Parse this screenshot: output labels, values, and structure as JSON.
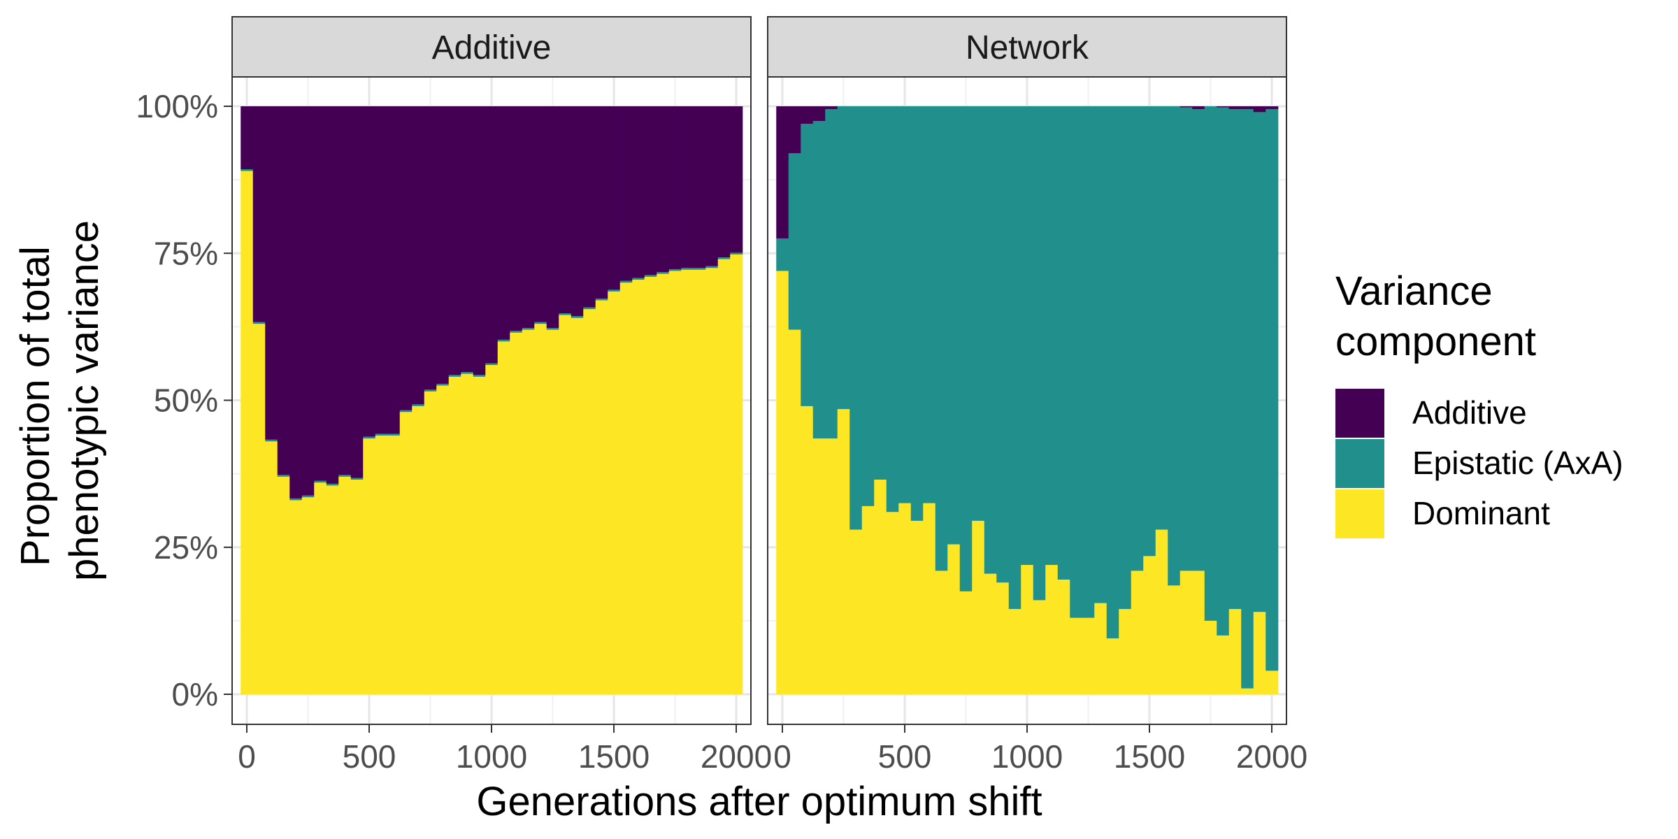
{
  "chart_data": {
    "type": "bar",
    "stacked": true,
    "normalized": true,
    "xlabel": "Generations after optimum shift",
    "ylabel_lines": [
      "Proportion of total",
      "phenotypic variance"
    ],
    "xlim": [
      -60,
      2060
    ],
    "ylim": [
      0,
      1
    ],
    "x_ticks": [
      0,
      500,
      1000,
      1500,
      2000
    ],
    "x_tick_labels": [
      "0",
      "500",
      "1000",
      "1500",
      "2000"
    ],
    "y_ticks": [
      0,
      0.25,
      0.5,
      0.75,
      1
    ],
    "y_tick_labels": [
      "0%",
      "25%",
      "50%",
      "75%",
      "100%"
    ],
    "bin_width": 50,
    "grid": true,
    "legend": {
      "title_lines": [
        "Variance",
        "component"
      ],
      "position": "right",
      "entries": [
        {
          "name": "Additive",
          "color": "#440154"
        },
        {
          "name": "Epistatic (AxA)",
          "color": "#21908C"
        },
        {
          "name": "Dominant",
          "color": "#FDE725"
        }
      ]
    },
    "panels": [
      {
        "name": "Additive",
        "x": [
          0,
          50,
          100,
          150,
          200,
          250,
          300,
          350,
          400,
          450,
          500,
          550,
          600,
          650,
          700,
          750,
          800,
          850,
          900,
          950,
          1000,
          1050,
          1100,
          1150,
          1200,
          1250,
          1300,
          1350,
          1400,
          1450,
          1500,
          1550,
          1600,
          1650,
          1700,
          1750,
          1800,
          1850,
          1900,
          1950,
          2000
        ],
        "dominant": [
          0.89,
          0.63,
          0.43,
          0.37,
          0.33,
          0.335,
          0.36,
          0.355,
          0.37,
          0.365,
          0.435,
          0.44,
          0.44,
          0.48,
          0.49,
          0.515,
          0.525,
          0.54,
          0.545,
          0.54,
          0.56,
          0.6,
          0.615,
          0.62,
          0.63,
          0.62,
          0.645,
          0.64,
          0.655,
          0.67,
          0.685,
          0.7,
          0.705,
          0.71,
          0.715,
          0.72,
          0.722,
          0.722,
          0.725,
          0.74,
          0.748
        ],
        "epistatic": [
          0.003,
          0.003,
          0.003,
          0.003,
          0.003,
          0.003,
          0.003,
          0.003,
          0.003,
          0.003,
          0.003,
          0.003,
          0.003,
          0.003,
          0.003,
          0.003,
          0.003,
          0.003,
          0.003,
          0.003,
          0.003,
          0.003,
          0.003,
          0.003,
          0.003,
          0.003,
          0.003,
          0.003,
          0.003,
          0.003,
          0.003,
          0.003,
          0.003,
          0.003,
          0.003,
          0.003,
          0.003,
          0.003,
          0.003,
          0.003,
          0.003
        ]
      },
      {
        "name": "Network",
        "x": [
          0,
          50,
          100,
          150,
          200,
          250,
          300,
          350,
          400,
          450,
          500,
          550,
          600,
          650,
          700,
          750,
          800,
          850,
          900,
          950,
          1000,
          1050,
          1100,
          1150,
          1200,
          1250,
          1300,
          1350,
          1400,
          1450,
          1500,
          1550,
          1600,
          1650,
          1700,
          1750,
          1800,
          1850,
          1900,
          1950,
          2000
        ],
        "dominant": [
          0.72,
          0.62,
          0.49,
          0.435,
          0.435,
          0.485,
          0.28,
          0.32,
          0.365,
          0.31,
          0.325,
          0.295,
          0.325,
          0.21,
          0.255,
          0.175,
          0.295,
          0.205,
          0.19,
          0.145,
          0.22,
          0.16,
          0.22,
          0.195,
          0.13,
          0.13,
          0.155,
          0.095,
          0.145,
          0.21,
          0.235,
          0.28,
          0.185,
          0.21,
          0.21,
          0.125,
          0.1,
          0.145,
          0.01,
          0.14,
          0.04
        ],
        "epistatic": [
          0.055,
          0.3,
          0.48,
          0.54,
          0.56,
          0.515,
          0.72,
          0.68,
          0.635,
          0.69,
          0.675,
          0.705,
          0.675,
          0.79,
          0.745,
          0.825,
          0.705,
          0.795,
          0.81,
          0.855,
          0.78,
          0.84,
          0.78,
          0.805,
          0.87,
          0.87,
          0.845,
          0.905,
          0.855,
          0.79,
          0.765,
          0.72,
          0.815,
          0.788,
          0.785,
          0.875,
          0.898,
          0.85,
          0.985,
          0.85,
          0.955
        ]
      }
    ]
  }
}
